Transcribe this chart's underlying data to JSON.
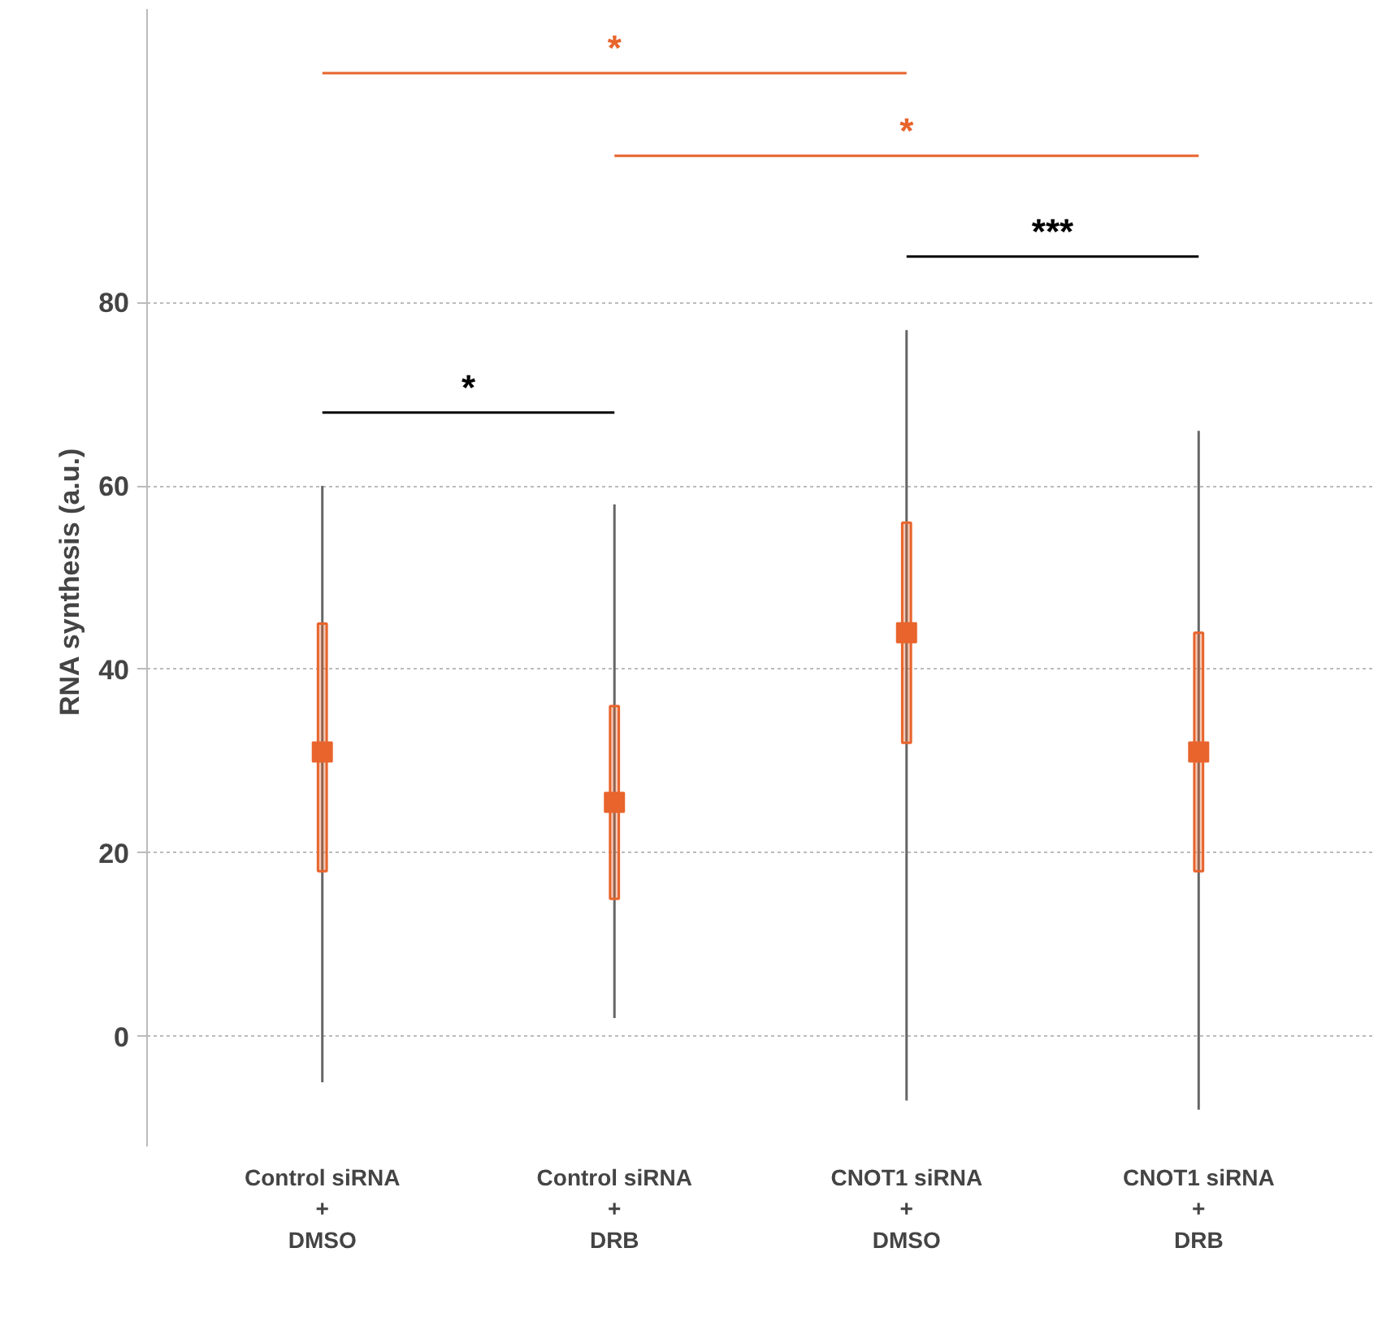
{
  "chart_data": {
    "type": "box",
    "ylabel": "RNA synthesis  (a.u.)",
    "categories": [
      "Control siRNA\n+\nDMSO",
      "Control siRNA\n+\nDRB",
      "CNOT1 siRNA\n+\nDMSO",
      "CNOT1 siRNA\n+\nDRB"
    ],
    "boxes": [
      {
        "low": -5,
        "q1": 18,
        "median": 31,
        "q3": 45,
        "high": 60
      },
      {
        "low": 2,
        "q1": 15,
        "median": 25.5,
        "q3": 36,
        "high": 58
      },
      {
        "low": -7,
        "q1": 32,
        "median": 44,
        "q3": 56,
        "high": 77
      },
      {
        "low": -8,
        "q1": 18,
        "median": 31,
        "q3": 44,
        "high": 66
      }
    ],
    "color": "#e8642c",
    "ylim": [
      -12,
      112
    ],
    "yticks": [
      0,
      20,
      40,
      60,
      80
    ],
    "grid": "y",
    "annotations": [
      "*",
      "*",
      "***",
      "*"
    ]
  }
}
